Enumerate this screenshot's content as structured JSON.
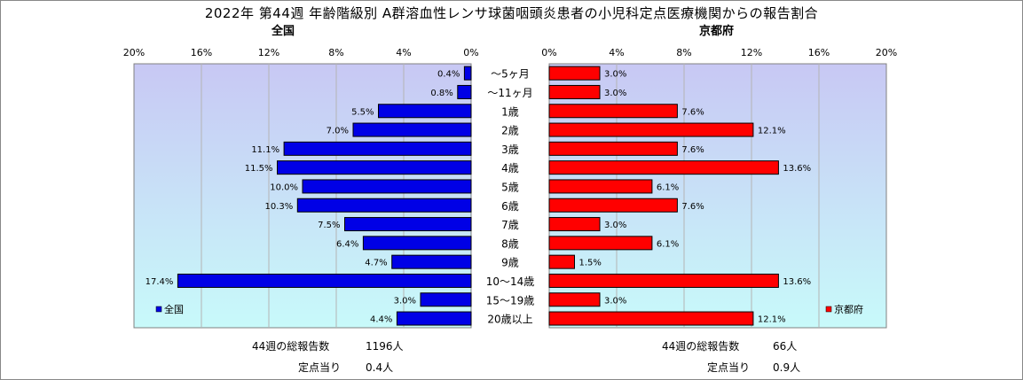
{
  "title": "2022年 第44週 年齢階級別 A群溶血性レンサ球菌咽頭炎患者の小児科定点医療機関からの報告割合",
  "left_panel": {
    "name": "全国"
  },
  "right_panel": {
    "name": "京都府"
  },
  "footer": {
    "left_total_label": "44週の総報告数",
    "left_total_value": "1196人",
    "left_per_label": "定点当り",
    "left_per_value": "0.4人",
    "right_total_label": "44週の総報告数",
    "right_total_value": "66人",
    "right_per_label": "定点当り",
    "right_per_value": "0.9人"
  },
  "colors": {
    "national_bar": "#0000e6",
    "kyoto_bar": "#ff0000",
    "grad_top": "#c8c8f4",
    "grad_bottom": "#c8fafa"
  },
  "chart_data": [
    {
      "type": "bar",
      "orientation": "horizontal",
      "direction": "right-to-left",
      "name": "全国",
      "categories": [
        "～5ヶ月",
        "～11ヶ月",
        "1歳",
        "2歳",
        "3歳",
        "4歳",
        "5歳",
        "6歳",
        "7歳",
        "8歳",
        "9歳",
        "10～14歳",
        "15～19歳",
        "20歳以上"
      ],
      "values": [
        0.4,
        0.8,
        5.5,
        7.0,
        11.1,
        11.5,
        10.0,
        10.3,
        7.5,
        6.4,
        4.7,
        17.4,
        3.0,
        4.4
      ],
      "value_labels": [
        "0.4%",
        "0.8%",
        "5.5%",
        "7.0%",
        "11.1%",
        "11.5%",
        "10.0%",
        "10.3%",
        "7.5%",
        "6.4%",
        "4.7%",
        "17.4%",
        "3.0%",
        "4.4%"
      ],
      "xlim": [
        0,
        20
      ],
      "ticks": [
        "20%",
        "16%",
        "12%",
        "8%",
        "4%",
        "0%"
      ],
      "legend": "全国",
      "legend_position": "bottom-left",
      "grid": true
    },
    {
      "type": "bar",
      "orientation": "horizontal",
      "name": "京都府",
      "categories": [
        "～5ヶ月",
        "～11ヶ月",
        "1歳",
        "2歳",
        "3歳",
        "4歳",
        "5歳",
        "6歳",
        "7歳",
        "8歳",
        "9歳",
        "10～14歳",
        "15～19歳",
        "20歳以上"
      ],
      "values": [
        3.0,
        3.0,
        7.6,
        12.1,
        7.6,
        13.6,
        6.1,
        7.6,
        3.0,
        6.1,
        1.5,
        13.6,
        3.0,
        12.1
      ],
      "value_labels": [
        "3.0%",
        "3.0%",
        "7.6%",
        "12.1%",
        "7.6%",
        "13.6%",
        "6.1%",
        "7.6%",
        "3.0%",
        "6.1%",
        "1.5%",
        "13.6%",
        "3.0%",
        "12.1%"
      ],
      "xlim": [
        0,
        20
      ],
      "ticks": [
        "0%",
        "4%",
        "8%",
        "12%",
        "16%",
        "20%"
      ],
      "legend": "京都府",
      "legend_position": "bottom-right",
      "grid": true
    }
  ]
}
